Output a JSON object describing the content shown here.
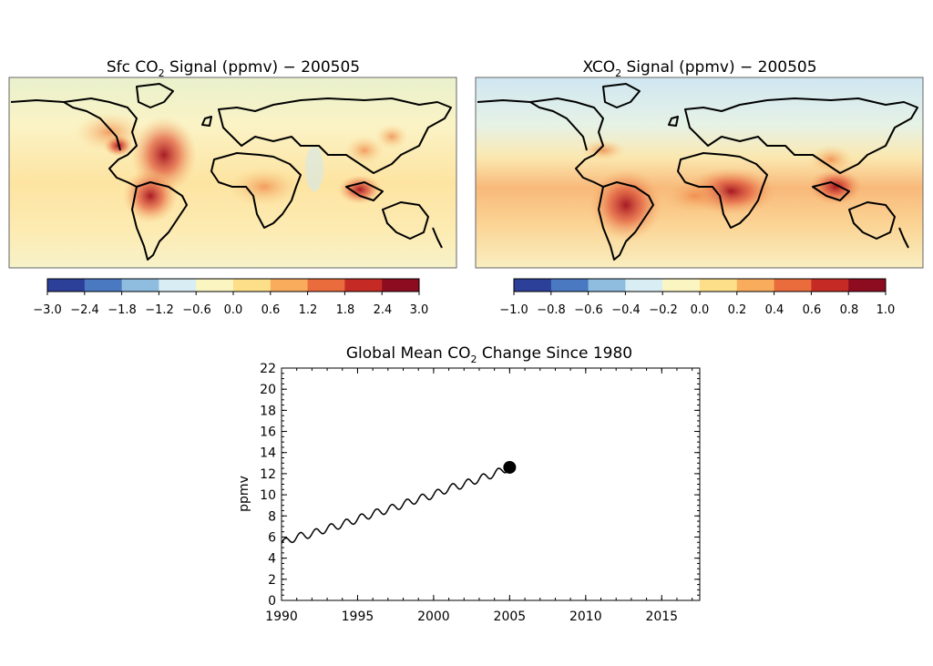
{
  "maps": [
    {
      "title_pre": "Sfc CO",
      "title_sub": "2",
      "title_post": " Signal (ppmv) − 200505",
      "colorbar_ticks": [
        "−3.0",
        "−2.4",
        "−1.8",
        "−1.2",
        "−0.6",
        "0.0",
        "0.6",
        "1.2",
        "1.8",
        "2.4",
        "3.0"
      ]
    },
    {
      "title_pre": "XCO",
      "title_sub": "2",
      "title_post": " Signal (ppmv) − 200505",
      "colorbar_ticks": [
        "−1.0",
        "−0.8",
        "−0.6",
        "−0.4",
        "−0.2",
        "0.0",
        "0.2",
        "0.4",
        "0.6",
        "0.8",
        "1.0"
      ]
    }
  ],
  "colorbar_colors": [
    "#2c3f99",
    "#4a79c2",
    "#8fbde0",
    "#d9eef4",
    "#fbf5c2",
    "#fddf8a",
    "#f9ad5c",
    "#ea6b3c",
    "#c52a25",
    "#8e0c20"
  ],
  "chart_data": {
    "type": "line",
    "title_pre": "Global Mean CO",
    "title_sub": "2",
    "title_post": " Change Since 1980",
    "ylabel": "ppmv",
    "xlim": [
      1990,
      2017.5
    ],
    "ylim": [
      0,
      22
    ],
    "x_ticks": [
      1990,
      1995,
      2000,
      2005,
      2010,
      2015
    ],
    "y_ticks": [
      0,
      2,
      4,
      6,
      8,
      10,
      12,
      14,
      16,
      18,
      20,
      22
    ],
    "series": [
      {
        "x": [
          1990.0,
          1991.0,
          1992.0,
          1993.0,
          1994.0,
          1995.0,
          1996.0,
          1997.0,
          1998.0,
          1999.0,
          2000.0,
          2001.0,
          2002.0,
          2003.0,
          2004.0,
          2005.0
        ],
        "y": [
          5.4,
          6.0,
          6.3,
          6.8,
          7.2,
          7.7,
          8.2,
          8.6,
          9.1,
          9.6,
          10.0,
          10.6,
          11.0,
          11.5,
          12.0,
          12.6
        ],
        "seasonal_amplitude": 0.35
      }
    ],
    "marker": {
      "x": 2005.0,
      "y": 12.6
    }
  }
}
